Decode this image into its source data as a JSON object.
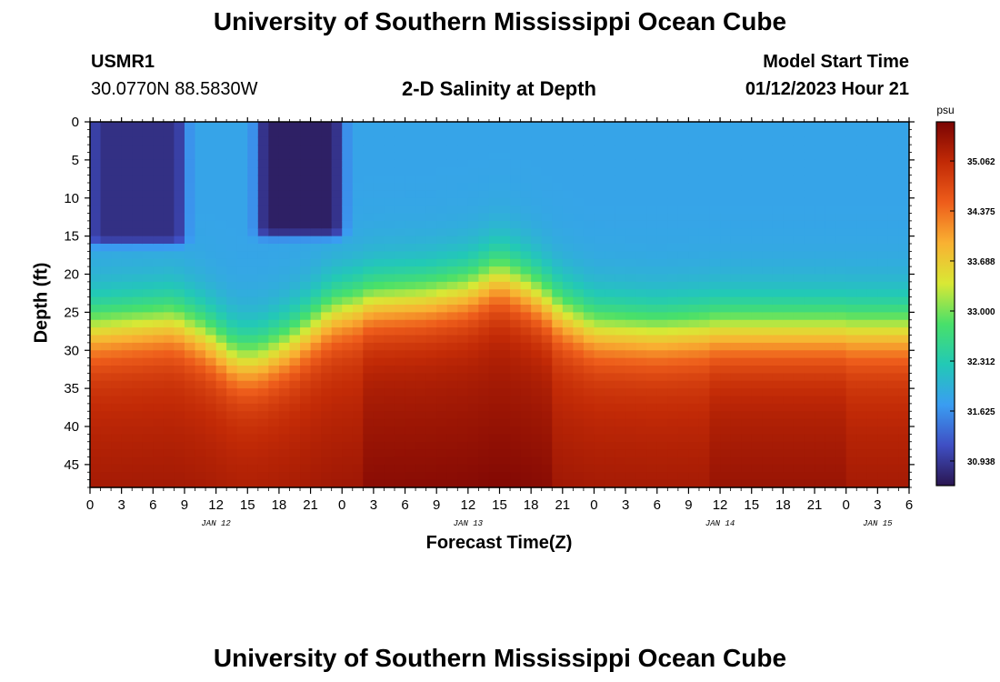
{
  "page": {
    "title": "University of Southern Mississippi Ocean Cube",
    "footer_title": "University of Southern Mississippi Ocean Cube",
    "station_id": "USMR1",
    "station_coords": "30.0770N  88.5830W",
    "model_start_label": "Model Start Time",
    "model_start_value": "01/12/2023 Hour 21"
  },
  "chart_data": {
    "type": "heatmap",
    "title": "2-D Salinity at Depth",
    "xlabel": "Forecast Time(Z)",
    "ylabel": "Depth (ft)",
    "units": "psu",
    "y_range": [
      0,
      48
    ],
    "y_inverted": true,
    "y_ticks": [
      0,
      5,
      10,
      15,
      20,
      25,
      30,
      35,
      40,
      45
    ],
    "x_range_hours": [
      0,
      78
    ],
    "x_ticks": [
      {
        "h": 0,
        "label": "0"
      },
      {
        "h": 3,
        "label": "3"
      },
      {
        "h": 6,
        "label": "6"
      },
      {
        "h": 9,
        "label": "9"
      },
      {
        "h": 12,
        "label": "12"
      },
      {
        "h": 15,
        "label": "15"
      },
      {
        "h": 18,
        "label": "18"
      },
      {
        "h": 21,
        "label": "21"
      },
      {
        "h": 24,
        "label": "0"
      },
      {
        "h": 27,
        "label": "3"
      },
      {
        "h": 30,
        "label": "6"
      },
      {
        "h": 33,
        "label": "9"
      },
      {
        "h": 36,
        "label": "12"
      },
      {
        "h": 39,
        "label": "15"
      },
      {
        "h": 42,
        "label": "18"
      },
      {
        "h": 45,
        "label": "21"
      },
      {
        "h": 48,
        "label": "0"
      },
      {
        "h": 51,
        "label": "3"
      },
      {
        "h": 54,
        "label": "6"
      },
      {
        "h": 57,
        "label": "9"
      },
      {
        "h": 60,
        "label": "12"
      },
      {
        "h": 63,
        "label": "15"
      },
      {
        "h": 66,
        "label": "18"
      },
      {
        "h": 69,
        "label": "21"
      },
      {
        "h": 72,
        "label": "0"
      },
      {
        "h": 75,
        "label": "3"
      },
      {
        "h": 78,
        "label": "6"
      }
    ],
    "day_labels": [
      {
        "h": 12,
        "label": "JAN 12"
      },
      {
        "h": 36,
        "label": "JAN 13"
      },
      {
        "h": 60,
        "label": "JAN 14"
      },
      {
        "h": 75,
        "label": "JAN 15"
      }
    ],
    "colorbar": {
      "min": 30.6,
      "max": 35.6,
      "ticks": [
        30.938,
        31.625,
        32.312,
        33.0,
        33.688,
        34.375,
        35.062
      ],
      "tick_labels": [
        "30.938",
        "31.625",
        "32.312",
        "33.000",
        "33.688",
        "34.375",
        "35.062"
      ],
      "colors": [
        "#2a1650",
        "#3f4fc4",
        "#3a9df2",
        "#22c9b6",
        "#48e06a",
        "#d9e835",
        "#f9b132",
        "#ee5d1b",
        "#c22a06",
        "#7a0403"
      ]
    },
    "surface_salinity_note": "low salinity near surface (~31 psu), high near bottom (~35.3 psu)",
    "halocline_depth_ft": [
      {
        "h": 0,
        "d": 27
      },
      {
        "h": 4,
        "d": 26.5
      },
      {
        "h": 8,
        "d": 26
      },
      {
        "h": 11,
        "d": 28
      },
      {
        "h": 14,
        "d": 31
      },
      {
        "h": 16,
        "d": 31
      },
      {
        "h": 19,
        "d": 29
      },
      {
        "h": 23,
        "d": 25
      },
      {
        "h": 27,
        "d": 23.5
      },
      {
        "h": 32,
        "d": 23
      },
      {
        "h": 36,
        "d": 22
      },
      {
        "h": 39,
        "d": 20
      },
      {
        "h": 42,
        "d": 22
      },
      {
        "h": 45,
        "d": 25
      },
      {
        "h": 48,
        "d": 27
      },
      {
        "h": 54,
        "d": 27.5
      },
      {
        "h": 60,
        "d": 27
      },
      {
        "h": 66,
        "d": 27
      },
      {
        "h": 72,
        "d": 27
      },
      {
        "h": 78,
        "d": 27
      }
    ],
    "fresh_patches": [
      {
        "h": [
          0,
          9
        ],
        "depth_ft": [
          0,
          16
        ],
        "psu": 30.85
      },
      {
        "h": [
          16,
          24
        ],
        "depth_ft": [
          0,
          15
        ],
        "psu": 30.7
      }
    ]
  }
}
